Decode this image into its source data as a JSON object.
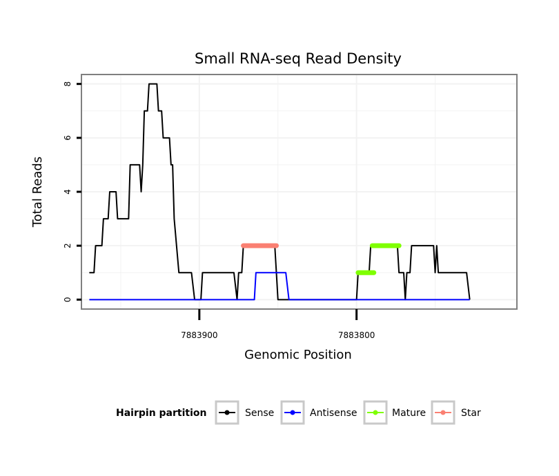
{
  "chart_data": {
    "type": "line",
    "title": "Small RNA-seq Read Density",
    "xlabel": "Genomic Position",
    "ylabel": "Total Reads",
    "x_axis_reversed": true,
    "xlim": [
      7883975,
      7883698
    ],
    "ylim": [
      -0.35,
      8.35
    ],
    "x_ticks": [
      {
        "value": 7883900,
        "label": "7883900"
      },
      {
        "value": 7883800,
        "label": "7883800"
      }
    ],
    "y_ticks": [
      {
        "value": 0,
        "label": "0"
      },
      {
        "value": 2,
        "label": "2"
      },
      {
        "value": 4,
        "label": "4"
      },
      {
        "value": 6,
        "label": "6"
      },
      {
        "value": 8,
        "label": "8"
      }
    ],
    "grid": true,
    "legend": {
      "title": "Hairpin partition",
      "position": "bottom",
      "entries": [
        {
          "name": "Sense",
          "color": "#000000"
        },
        {
          "name": "Antisense",
          "color": "#0000ff"
        },
        {
          "name": "Mature",
          "color": "#7fff00"
        },
        {
          "name": "Star",
          "color": "#fa8072"
        }
      ]
    },
    "series": [
      {
        "name": "Sense",
        "color": "#000000",
        "points": [
          [
            7883970,
            1
          ],
          [
            7883967,
            1
          ],
          [
            7883966,
            2
          ],
          [
            7883962,
            2
          ],
          [
            7883961,
            3
          ],
          [
            7883958,
            3
          ],
          [
            7883957,
            4
          ],
          [
            7883953,
            4
          ],
          [
            7883952,
            3
          ],
          [
            7883945,
            3
          ],
          [
            7883944,
            5
          ],
          [
            7883938,
            5
          ],
          [
            7883937,
            4
          ],
          [
            7883936,
            5
          ],
          [
            7883935,
            7
          ],
          [
            7883933,
            7
          ],
          [
            7883932,
            8
          ],
          [
            7883927,
            8
          ],
          [
            7883926,
            7
          ],
          [
            7883924,
            7
          ],
          [
            7883923,
            6
          ],
          [
            7883919,
            6
          ],
          [
            7883918,
            5
          ],
          [
            7883917,
            5
          ],
          [
            7883916,
            3
          ],
          [
            7883913,
            1
          ],
          [
            7883905,
            1
          ],
          [
            7883903,
            0
          ],
          [
            7883899,
            0
          ],
          [
            7883898,
            1
          ],
          [
            7883878,
            1
          ],
          [
            7883876,
            0
          ],
          [
            7883875,
            1
          ],
          [
            7883873,
            1
          ],
          [
            7883872,
            2
          ],
          [
            7883852,
            2
          ],
          [
            7883850,
            0
          ],
          [
            7883800,
            0
          ],
          [
            7883799,
            1
          ],
          [
            7883792,
            1
          ],
          [
            7883791,
            2
          ],
          [
            7883774,
            2
          ],
          [
            7883773,
            1
          ],
          [
            7883770,
            1
          ],
          [
            7883769,
            0
          ],
          [
            7883768,
            1
          ],
          [
            7883766,
            1
          ],
          [
            7883765,
            2
          ],
          [
            7883751,
            2
          ],
          [
            7883750,
            1
          ],
          [
            7883749,
            2
          ],
          [
            7883748,
            1
          ],
          [
            7883730,
            1
          ],
          [
            7883728,
            0
          ]
        ]
      },
      {
        "name": "Antisense",
        "color": "#0000ff",
        "points": [
          [
            7883970,
            0
          ],
          [
            7883865,
            0
          ],
          [
            7883864,
            1
          ],
          [
            7883845,
            1
          ],
          [
            7883843,
            0
          ],
          [
            7883728,
            0
          ]
        ]
      },
      {
        "name": "Mature",
        "color": "#7fff00",
        "segments": [
          {
            "x_start": 7883799,
            "x_end": 7883789,
            "y": 1
          },
          {
            "x_start": 7883790,
            "x_end": 7883773,
            "y": 2
          }
        ]
      },
      {
        "name": "Star",
        "color": "#fa8072",
        "segments": [
          {
            "x_start": 7883872,
            "x_end": 7883851,
            "y": 2
          }
        ]
      }
    ]
  }
}
